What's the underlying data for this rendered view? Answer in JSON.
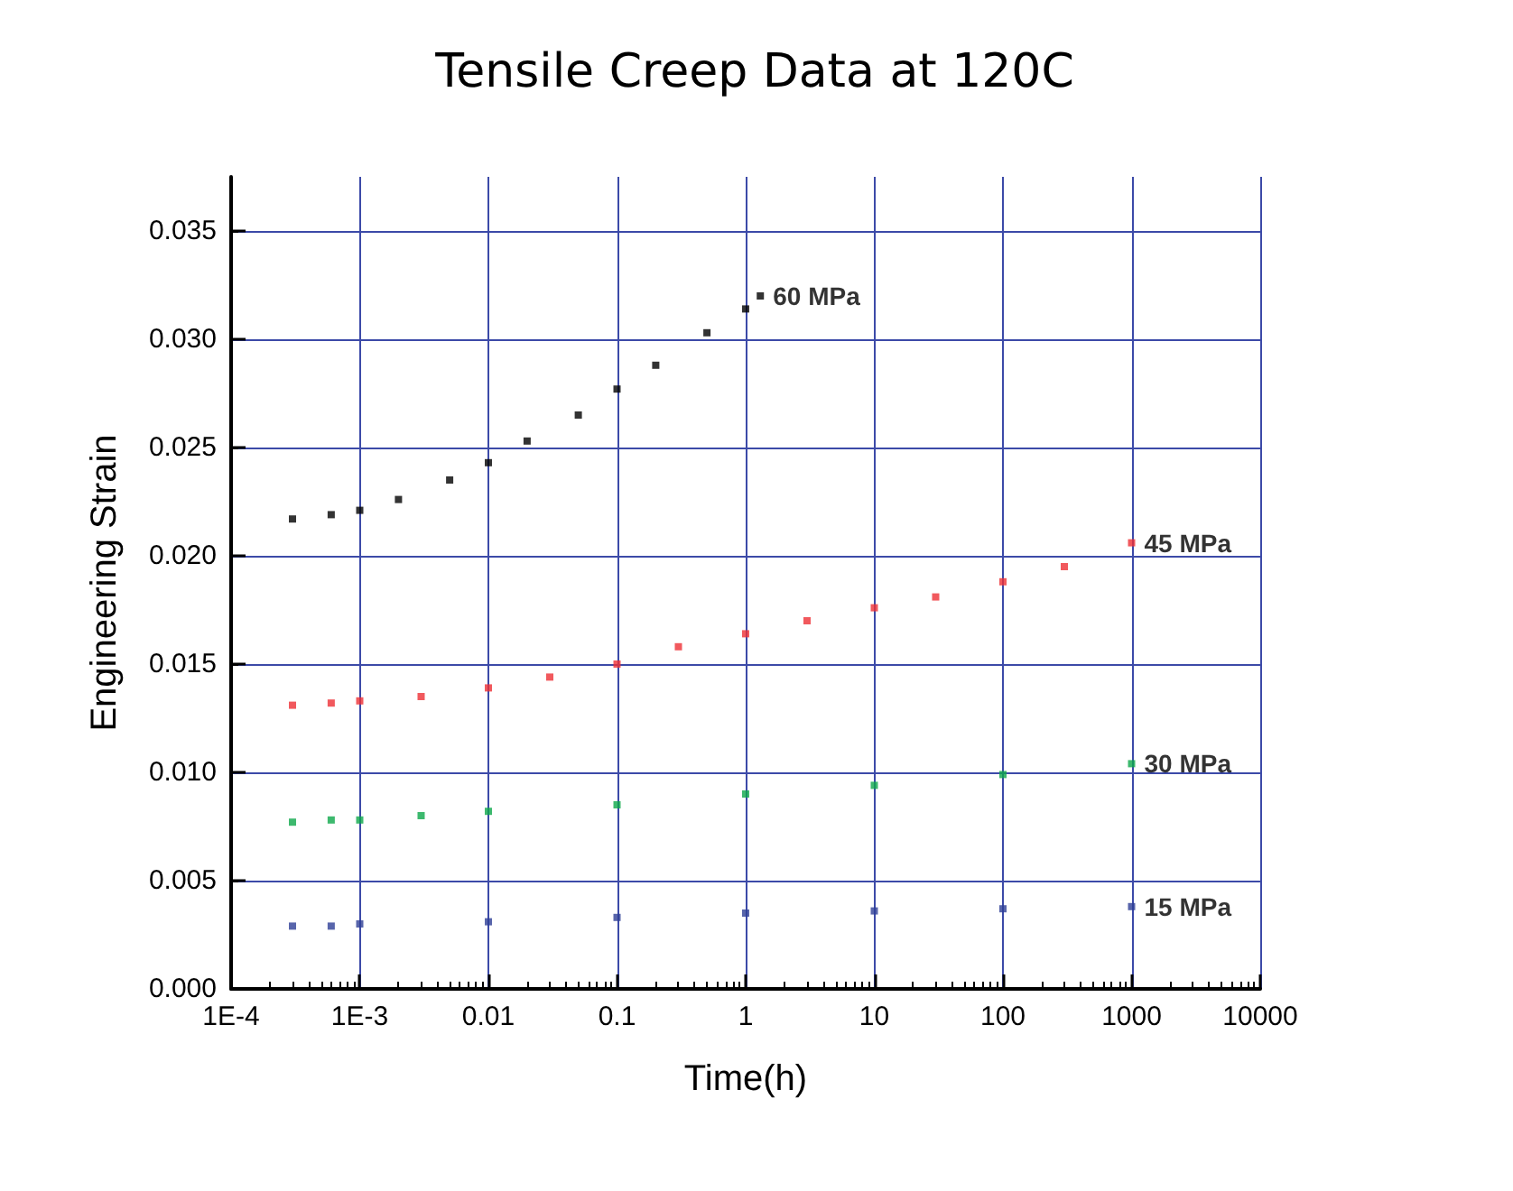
{
  "chart_data": {
    "type": "scatter",
    "title": "Tensile Creep Data at 120C",
    "xlabel": "Time(h)",
    "ylabel": "Engineering Strain",
    "log": "x",
    "grid": true,
    "legend": false,
    "marker": "square",
    "xlim": [
      0.0001,
      10000
    ],
    "xticks": [
      {
        "value": 0.0001,
        "label": "1E-4"
      },
      {
        "value": 0.001,
        "label": "1E-3"
      },
      0.01,
      0.1,
      1,
      10,
      100,
      1000,
      10000
    ],
    "ylim": [
      0,
      0.0375
    ],
    "yticks": [
      {
        "value": 0,
        "label": "0.000"
      },
      0.005,
      {
        "value": 0.01,
        "label": "0.010"
      },
      0.015,
      {
        "value": 0.02,
        "label": "0.020"
      },
      0.025,
      {
        "value": 0.03,
        "label": "0.030"
      },
      0.035
    ],
    "series": [
      {
        "name": "60 MPa",
        "color": "#000000",
        "x": [
          0.0003,
          0.0006,
          0.001,
          0.002,
          0.005,
          0.01,
          0.02,
          0.05,
          0.1,
          0.2,
          0.5,
          1,
          1.3
        ],
        "values": [
          0.0217,
          0.0219,
          0.0221,
          0.0226,
          0.0235,
          0.0243,
          0.0253,
          0.0265,
          0.0277,
          0.0288,
          0.0303,
          0.0314,
          0.032
        ]
      },
      {
        "name": "45 MPa",
        "color": "#ee3035",
        "x": [
          0.0003,
          0.0006,
          0.001,
          0.003,
          0.01,
          0.03,
          0.1,
          0.3,
          1,
          3,
          10,
          30,
          100,
          300,
          1000
        ],
        "values": [
          0.0131,
          0.0132,
          0.0133,
          0.0135,
          0.0139,
          0.0144,
          0.015,
          0.0158,
          0.0164,
          0.017,
          0.0176,
          0.0181,
          0.0188,
          0.0195,
          0.0206
        ]
      },
      {
        "name": "30 MPa",
        "color": "#0ca84a",
        "x": [
          0.0003,
          0.0006,
          0.001,
          0.003,
          0.01,
          0.1,
          1,
          10,
          100,
          1000
        ],
        "values": [
          0.0077,
          0.0078,
          0.0078,
          0.008,
          0.0082,
          0.0085,
          0.009,
          0.0094,
          0.0099,
          0.0104
        ]
      },
      {
        "name": "15 MPa",
        "color": "#2e3f96",
        "x": [
          0.0003,
          0.0006,
          0.001,
          0.01,
          0.1,
          1,
          10,
          100,
          1000
        ],
        "values": [
          0.0029,
          0.0029,
          0.003,
          0.0031,
          0.0033,
          0.0035,
          0.0036,
          0.0037,
          0.0038
        ]
      }
    ]
  }
}
